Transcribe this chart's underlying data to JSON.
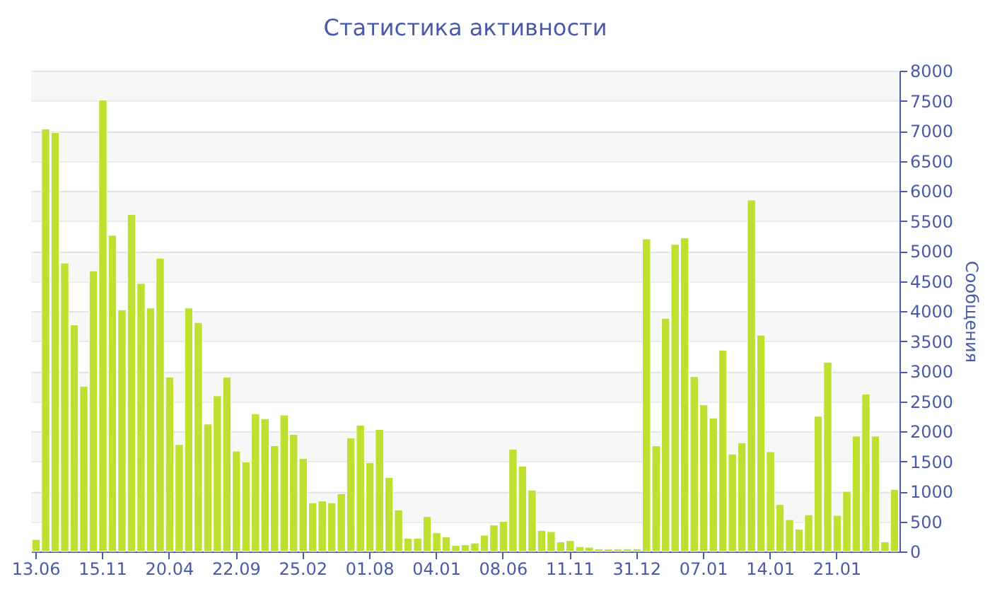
{
  "chart_data": {
    "type": "bar",
    "title": "Статистика активности",
    "ylabel": "Сообщения",
    "categories": [
      "13.06",
      null,
      null,
      null,
      null,
      null,
      null,
      "15.11",
      null,
      null,
      null,
      null,
      null,
      null,
      "20.04",
      null,
      null,
      null,
      null,
      null,
      null,
      "22.09",
      null,
      null,
      null,
      null,
      null,
      null,
      "25.02",
      null,
      null,
      null,
      null,
      null,
      null,
      "01.08",
      null,
      null,
      null,
      null,
      null,
      null,
      "04.01",
      null,
      null,
      null,
      null,
      null,
      null,
      "08.06",
      null,
      null,
      null,
      null,
      null,
      null,
      "11.11",
      null,
      null,
      null,
      null,
      null,
      null,
      "31.12",
      null,
      null,
      null,
      null,
      null,
      null,
      "07.01",
      null,
      null,
      null,
      null,
      null,
      null,
      "14.01",
      null,
      null,
      null,
      null,
      null,
      null,
      "21.01",
      null,
      null,
      null,
      null,
      null,
      null
    ],
    "values": [
      200,
      7030,
      6970,
      4800,
      3770,
      2750,
      4670,
      7510,
      5260,
      4020,
      5610,
      4460,
      4050,
      4880,
      2900,
      1780,
      4050,
      3810,
      2120,
      2590,
      2900,
      1670,
      1490,
      2290,
      2210,
      1760,
      2270,
      1950,
      1550,
      810,
      840,
      810,
      960,
      1890,
      2100,
      1480,
      2030,
      1230,
      690,
      220,
      220,
      580,
      310,
      240,
      100,
      110,
      140,
      270,
      440,
      500,
      1700,
      1420,
      1020,
      350,
      330,
      160,
      180,
      80,
      70,
      40,
      40,
      40,
      40,
      40,
      5200,
      1760,
      3880,
      5110,
      5220,
      2910,
      2440,
      2220,
      3350,
      1620,
      1810,
      5850,
      3600,
      1660,
      780,
      530,
      370,
      610,
      2250,
      3150,
      600,
      1000,
      1920,
      2620,
      1920,
      160,
      1030
    ],
    "color": "#bde031",
    "ylim": [
      0,
      8000
    ],
    "yticks": [
      0,
      500,
      1000,
      1500,
      2000,
      2500,
      3000,
      3500,
      4000,
      4500,
      5000,
      5500,
      6000,
      6500,
      7000,
      7500,
      8000
    ],
    "grid": "y"
  }
}
